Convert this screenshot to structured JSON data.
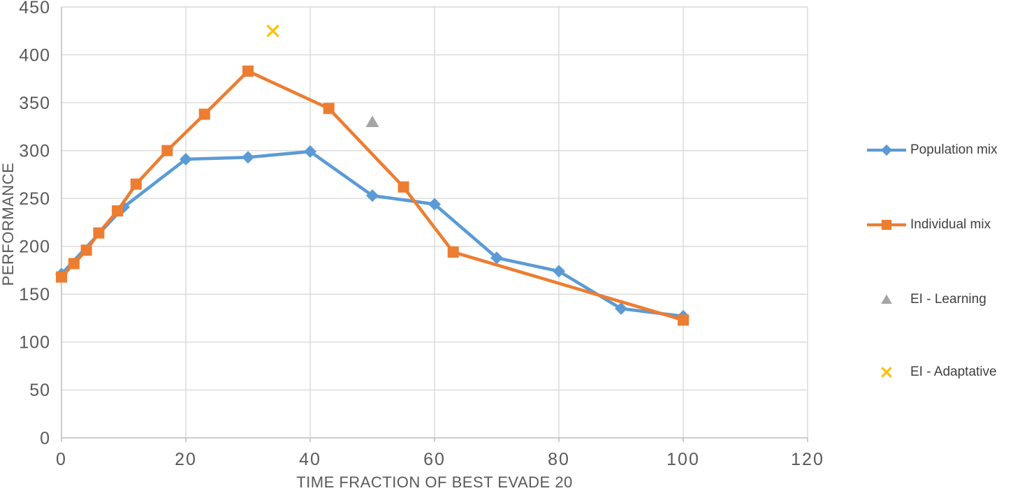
{
  "chart_data": {
    "type": "line",
    "title": "",
    "xlabel": "TIME FRACTION OF BEST EVADE 20",
    "ylabel": "PERFORMANCE",
    "xlim": [
      0,
      120
    ],
    "ylim": [
      0,
      450
    ],
    "x_ticks": [
      0,
      20,
      40,
      60,
      80,
      100,
      120
    ],
    "y_ticks": [
      0,
      50,
      100,
      150,
      200,
      250,
      300,
      350,
      400,
      450
    ],
    "grid": true,
    "legend_position": "right",
    "style": {
      "gridline_color": "#d9d9d9",
      "axis_color": "#bfbfbf",
      "tick_label_color": "#595959",
      "axis_title_color": "#595959",
      "legend_text_color": "#404040",
      "background": "#ffffff"
    },
    "series": [
      {
        "name": "Population mix",
        "color": "#5b9bd5",
        "marker": "diamond",
        "line": true,
        "points": [
          [
            0,
            171
          ],
          [
            10,
            241
          ],
          [
            20,
            291
          ],
          [
            30,
            293
          ],
          [
            40,
            299
          ],
          [
            50,
            253
          ],
          [
            60,
            244
          ],
          [
            70,
            188
          ],
          [
            80,
            174
          ],
          [
            90,
            135
          ],
          [
            100,
            127
          ]
        ]
      },
      {
        "name": "Individual mix",
        "color": "#ed7d31",
        "marker": "square",
        "line": true,
        "points": [
          [
            0,
            168
          ],
          [
            2,
            182
          ],
          [
            4,
            196
          ],
          [
            6,
            214
          ],
          [
            9,
            237
          ],
          [
            12,
            265
          ],
          [
            17,
            300
          ],
          [
            23,
            338
          ],
          [
            30,
            383
          ],
          [
            43,
            344
          ],
          [
            55,
            262
          ],
          [
            63,
            194
          ],
          [
            100,
            123
          ]
        ]
      },
      {
        "name": "EI - Learning",
        "color": "#a5a5a5",
        "marker": "triangle",
        "line": false,
        "points": [
          [
            50,
            330
          ]
        ]
      },
      {
        "name": "EI - Adaptative",
        "color": "#ffc000",
        "marker": "x",
        "line": false,
        "points": [
          [
            34,
            425
          ]
        ]
      }
    ]
  }
}
